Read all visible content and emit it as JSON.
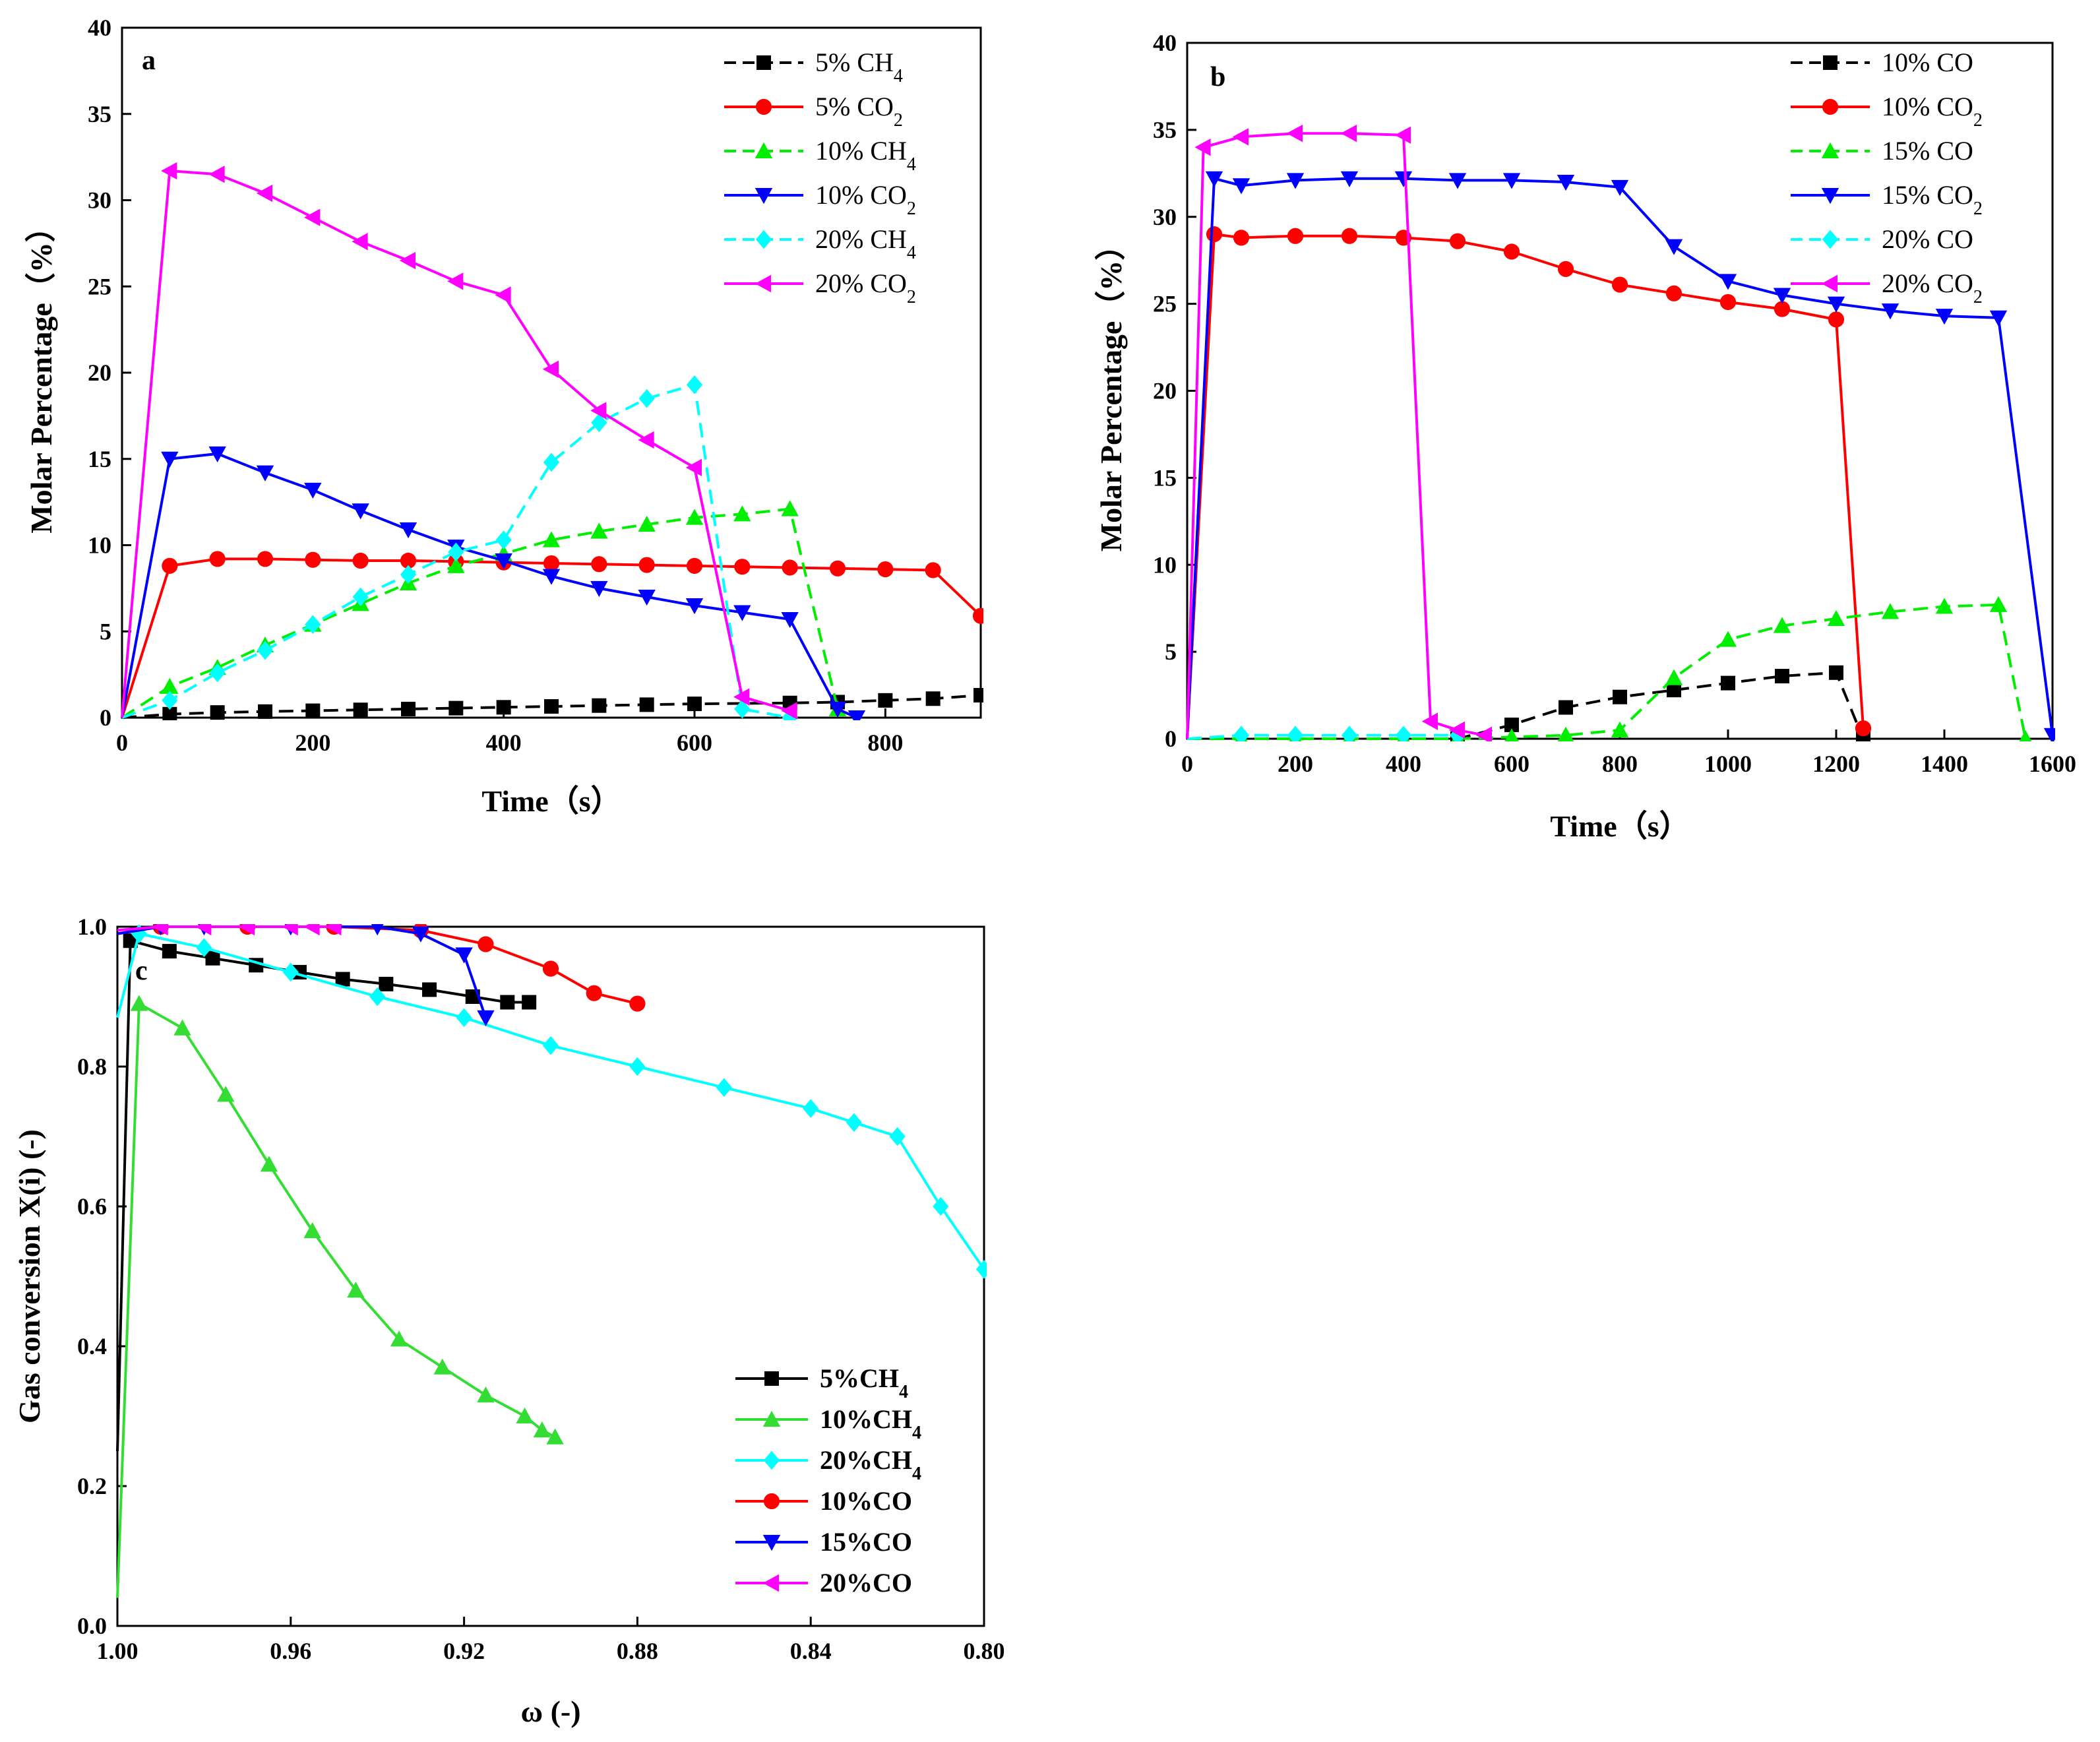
{
  "chart_data": [
    {
      "panel": "a",
      "type": "line",
      "xlabel": "Time（s）",
      "ylabel": "Molar Percentage（%）",
      "xlim": [
        0,
        900
      ],
      "ylim": [
        0,
        40
      ],
      "xticks": [
        0,
        200,
        400,
        600,
        800
      ],
      "yticks": [
        0,
        5,
        10,
        15,
        20,
        25,
        30,
        35,
        40
      ],
      "legend_position": "top-right",
      "series": [
        {
          "name": "5% CH",
          "sub": "4",
          "color": "#000000",
          "dash": true,
          "marker": "square",
          "x": [
            0,
            50,
            100,
            150,
            200,
            250,
            300,
            350,
            400,
            450,
            500,
            550,
            600,
            700,
            750,
            800,
            850,
            900
          ],
          "y": [
            0,
            0.2,
            0.3,
            0.35,
            0.4,
            0.45,
            0.5,
            0.55,
            0.6,
            0.65,
            0.7,
            0.75,
            0.8,
            0.85,
            0.9,
            1.0,
            1.1,
            1.3
          ]
        },
        {
          "name": "5% CO",
          "sub": "2",
          "color": "#ff0000",
          "dash": false,
          "marker": "circle",
          "x": [
            0,
            50,
            100,
            150,
            200,
            250,
            300,
            350,
            400,
            450,
            500,
            550,
            600,
            650,
            700,
            750,
            800,
            850,
            900
          ],
          "y": [
            0,
            8.8,
            9.2,
            9.2,
            9.15,
            9.1,
            9.1,
            9.05,
            9.0,
            8.95,
            8.9,
            8.85,
            8.8,
            8.75,
            8.7,
            8.65,
            8.6,
            8.55,
            5.9
          ]
        },
        {
          "name": "10% CH",
          "sub": "4",
          "color": "#00ee00",
          "dash": true,
          "marker": "triangle-up",
          "x": [
            0,
            50,
            100,
            150,
            200,
            250,
            300,
            350,
            400,
            450,
            500,
            550,
            600,
            650,
            700,
            750
          ],
          "y": [
            0,
            1.8,
            2.9,
            4.2,
            5.4,
            6.6,
            7.8,
            8.8,
            9.5,
            10.3,
            10.8,
            11.2,
            11.6,
            11.8,
            12.1,
            0.5
          ]
        },
        {
          "name": "10% CO",
          "sub": "2",
          "color": "#0000ff",
          "dash": false,
          "marker": "triangle-down",
          "x": [
            0,
            50,
            100,
            150,
            200,
            250,
            300,
            350,
            400,
            450,
            500,
            550,
            600,
            650,
            700,
            750,
            770
          ],
          "y": [
            0,
            15.0,
            15.3,
            14.2,
            13.2,
            12.0,
            10.9,
            9.9,
            9.1,
            8.2,
            7.5,
            7.0,
            6.5,
            6.1,
            5.7,
            0.5,
            0
          ]
        },
        {
          "name": "20% CH",
          "sub": "4",
          "color": "#00ffff",
          "dash": true,
          "marker": "diamond",
          "x": [
            0,
            50,
            100,
            150,
            200,
            250,
            300,
            350,
            400,
            450,
            500,
            550,
            600,
            650,
            700
          ],
          "y": [
            0,
            1.0,
            2.6,
            3.9,
            5.4,
            7.0,
            8.3,
            9.6,
            10.3,
            14.8,
            17.1,
            18.5,
            19.3,
            0.5,
            0
          ]
        },
        {
          "name": "20% CO",
          "sub": "2",
          "color": "#ff00ff",
          "dash": false,
          "marker": "triangle-left",
          "x": [
            0,
            50,
            100,
            150,
            200,
            250,
            300,
            350,
            400,
            450,
            500,
            550,
            600,
            650,
            700
          ],
          "y": [
            0,
            31.7,
            31.5,
            30.4,
            29.0,
            27.6,
            26.5,
            25.3,
            24.5,
            20.2,
            17.8,
            16.1,
            14.5,
            1.2,
            0.4
          ]
        }
      ]
    },
    {
      "panel": "b",
      "type": "line",
      "xlabel": "Time（s）",
      "ylabel": "Molar Percentage（%）",
      "xlim": [
        0,
        1600
      ],
      "ylim": [
        0,
        40
      ],
      "xticks": [
        0,
        200,
        400,
        600,
        800,
        1000,
        1200,
        1400,
        1600
      ],
      "yticks": [
        0,
        5,
        10,
        15,
        20,
        25,
        30,
        35,
        40
      ],
      "legend_position": "top-right",
      "series": [
        {
          "name": "10% CO",
          "sub": "",
          "color": "#000000",
          "dash": true,
          "marker": "square",
          "x": [
            0,
            500,
            600,
            700,
            800,
            900,
            1000,
            1100,
            1200,
            1250
          ],
          "y": [
            0,
            0,
            0.8,
            1.8,
            2.4,
            2.8,
            3.2,
            3.6,
            3.8,
            0
          ]
        },
        {
          "name": "10% CO",
          "sub": "2",
          "color": "#ff0000",
          "dash": false,
          "marker": "circle",
          "x": [
            0,
            50,
            100,
            200,
            300,
            400,
            500,
            600,
            700,
            800,
            900,
            1000,
            1100,
            1200,
            1250
          ],
          "y": [
            0,
            29.0,
            28.8,
            28.9,
            28.9,
            28.8,
            28.6,
            28.0,
            27.0,
            26.1,
            25.6,
            25.1,
            24.7,
            24.1,
            0.6
          ]
        },
        {
          "name": "15% CO",
          "sub": "",
          "color": "#00ee00",
          "dash": true,
          "marker": "triangle-up",
          "x": [
            0,
            100,
            200,
            300,
            400,
            500,
            600,
            700,
            800,
            900,
            1000,
            1100,
            1200,
            1300,
            1400,
            1500,
            1550
          ],
          "y": [
            0,
            0,
            0,
            0,
            0,
            0,
            0.1,
            0.2,
            0.5,
            3.5,
            5.7,
            6.5,
            6.9,
            7.3,
            7.6,
            7.7,
            0
          ]
        },
        {
          "name": "15% CO",
          "sub": "2",
          "color": "#0000ff",
          "dash": false,
          "marker": "triangle-down",
          "x": [
            0,
            50,
            100,
            200,
            300,
            400,
            500,
            600,
            700,
            800,
            900,
            1000,
            1100,
            1200,
            1300,
            1400,
            1500,
            1600
          ],
          "y": [
            0,
            32.2,
            31.8,
            32.1,
            32.2,
            32.2,
            32.1,
            32.1,
            32.0,
            31.7,
            28.3,
            26.3,
            25.5,
            25.0,
            24.6,
            24.3,
            24.2,
            0.2
          ]
        },
        {
          "name": "20% CO",
          "sub": "",
          "color": "#00ffff",
          "dash": true,
          "marker": "diamond",
          "x": [
            0,
            100,
            200,
            300,
            400,
            500
          ],
          "y": [
            0,
            0.2,
            0.2,
            0.2,
            0.2,
            0.2
          ]
        },
        {
          "name": "20% CO",
          "sub": "2",
          "color": "#ff00ff",
          "dash": false,
          "marker": "triangle-left",
          "x": [
            0,
            30,
            100,
            200,
            300,
            400,
            450,
            500,
            550
          ],
          "y": [
            0,
            34.0,
            34.6,
            34.8,
            34.8,
            34.7,
            1.0,
            0.5,
            0.2
          ]
        }
      ]
    },
    {
      "panel": "c",
      "type": "line",
      "xlabel": "ω (-)",
      "ylabel": "Gas conversion X(i) (-)",
      "xlim": [
        1.0,
        0.8
      ],
      "ylim": [
        0,
        1.0
      ],
      "xticks": [
        "1.00",
        "0.96",
        "0.92",
        "0.88",
        "0.84",
        "0.80"
      ],
      "yticks": [
        "0.0",
        "0.2",
        "0.4",
        "0.6",
        "0.8",
        "1.0"
      ],
      "legend_position": "bottom-center",
      "series": [
        {
          "name": "5%CH",
          "sub": "4",
          "color": "#000000",
          "dash": false,
          "marker": "square",
          "x": [
            1.0,
            0.997,
            0.988,
            0.978,
            0.968,
            0.958,
            0.948,
            0.938,
            0.928,
            0.918,
            0.91,
            0.905
          ],
          "y": [
            0.25,
            0.98,
            0.965,
            0.955,
            0.945,
            0.935,
            0.925,
            0.918,
            0.91,
            0.9,
            0.892,
            0.892
          ]
        },
        {
          "name": "10%CH",
          "sub": "4",
          "color": "#33dd33",
          "dash": false,
          "marker": "triangle-up",
          "x": [
            1.0,
            0.995,
            0.985,
            0.975,
            0.965,
            0.955,
            0.945,
            0.935,
            0.925,
            0.915,
            0.906,
            0.902,
            0.899
          ],
          "y": [
            0.04,
            0.89,
            0.855,
            0.76,
            0.66,
            0.565,
            0.48,
            0.41,
            0.37,
            0.33,
            0.3,
            0.28,
            0.27
          ]
        },
        {
          "name": "20%CH",
          "sub": "4",
          "color": "#00ffff",
          "dash": false,
          "marker": "diamond",
          "x": [
            1.0,
            0.995,
            0.98,
            0.96,
            0.94,
            0.92,
            0.9,
            0.88,
            0.86,
            0.84,
            0.83,
            0.82,
            0.81,
            0.8
          ],
          "y": [
            0.87,
            0.99,
            0.97,
            0.935,
            0.9,
            0.87,
            0.83,
            0.8,
            0.77,
            0.74,
            0.72,
            0.7,
            0.6,
            0.51
          ]
        },
        {
          "name": "10%CO",
          "sub": "",
          "color": "#ff0000",
          "dash": false,
          "marker": "circle",
          "x": [
            1.0,
            0.99,
            0.97,
            0.95,
            0.93,
            0.915,
            0.9,
            0.89,
            0.88
          ],
          "y": [
            0.99,
            1.0,
            1.0,
            1.0,
            0.995,
            0.975,
            0.94,
            0.905,
            0.89
          ]
        },
        {
          "name": "15%CO",
          "sub": "",
          "color": "#0000ff",
          "dash": false,
          "marker": "triangle-down",
          "x": [
            1.0,
            0.99,
            0.98,
            0.96,
            0.94,
            0.93,
            0.92,
            0.915
          ],
          "y": [
            0.99,
            1.0,
            1.0,
            1.0,
            1.0,
            0.99,
            0.96,
            0.87
          ]
        },
        {
          "name": "20%CO",
          "sub": "",
          "color": "#ff00ff",
          "dash": false,
          "marker": "triangle-left",
          "x": [
            1.0,
            0.99,
            0.98,
            0.97,
            0.96,
            0.955,
            0.95
          ],
          "y": [
            0.995,
            1.0,
            1.0,
            1.0,
            1.0,
            1.0,
            1.0
          ]
        }
      ]
    }
  ]
}
